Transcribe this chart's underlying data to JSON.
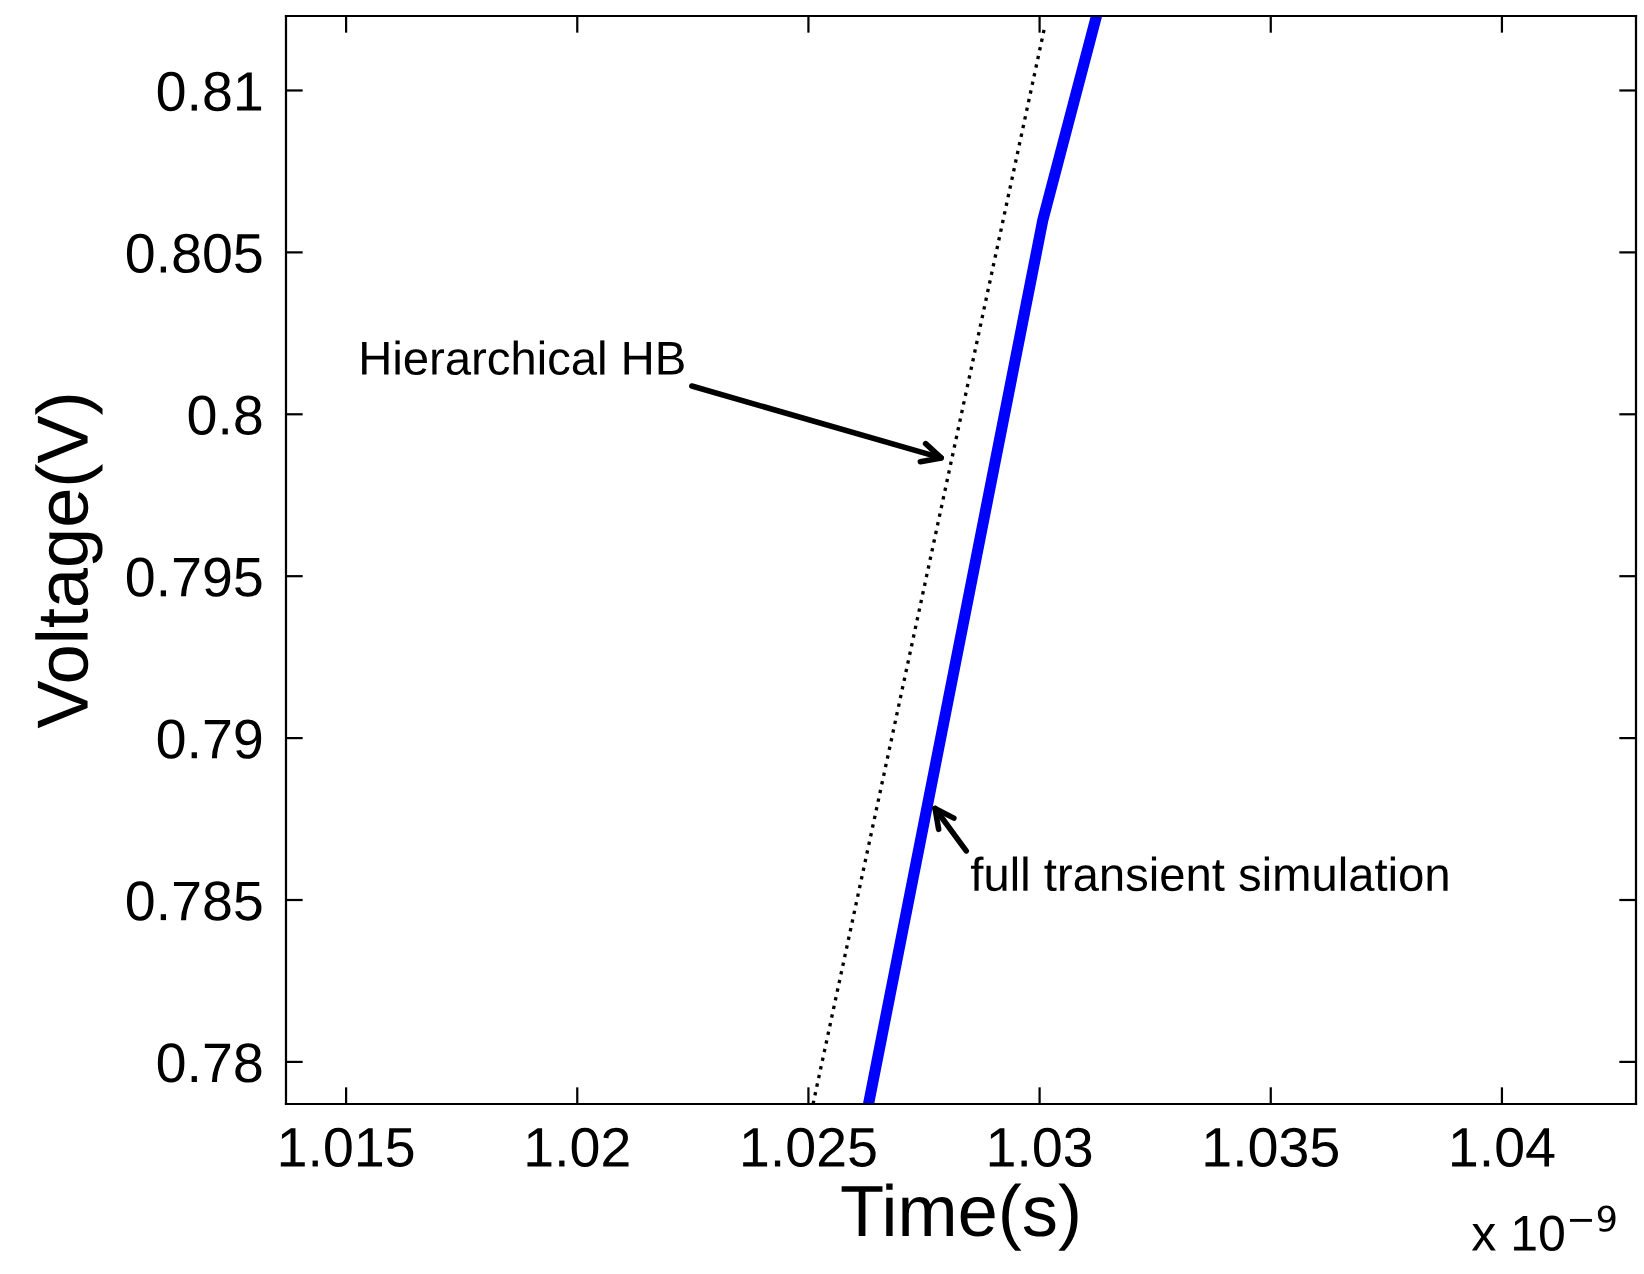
{
  "chart_data": {
    "type": "line",
    "xlabel": "Time(s)",
    "ylabel": "Voltage(V)",
    "xlim": [
      1.0137,
      1.0429
    ],
    "ylim": [
      0.7787,
      0.8123
    ],
    "xticks": [
      1.015,
      1.02,
      1.025,
      1.03,
      1.035,
      1.04
    ],
    "yticks": [
      0.78,
      0.785,
      0.79,
      0.795,
      0.8,
      0.805,
      0.81
    ],
    "grid": false,
    "legend": false,
    "marker": "none",
    "series": [
      {
        "color": "#000000",
        "line_style": "dotted",
        "x": [
          1.0251,
          1.0301
        ],
        "values": [
          0.7787,
          0.8119
        ]
      },
      {
        "color": "#0000ff",
        "line_style": "solid",
        "x": [
          1.0263,
          1.03007,
          1.03123
        ],
        "values": [
          0.7787,
          0.806,
          0.8123
        ]
      }
    ],
    "annotations": [
      {
        "text": "Hierarchical HB",
        "x": 1.028,
        "y": 0.7986
      },
      {
        "text": "full transient simulation",
        "x": 1.02766,
        "y": 0.78798
      },
      "x 10$^{−9}$"
    ]
  }
}
